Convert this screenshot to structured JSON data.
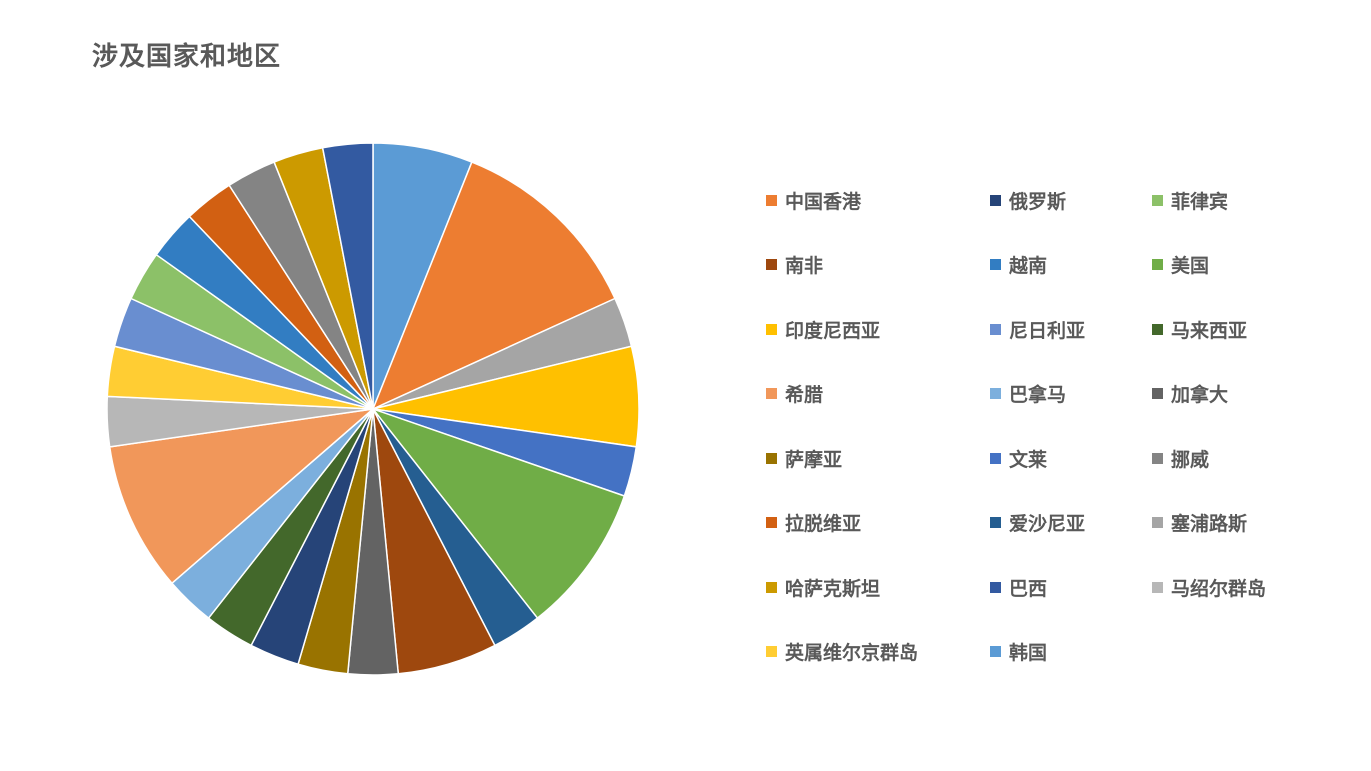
{
  "chart_data": {
    "type": "pie",
    "title": "涉及国家和地区",
    "legend_position": "right",
    "slice_order": "clockwise-from-top",
    "slices": [
      {
        "label": "韩国",
        "value": 2,
        "color": "#5B9BD5"
      },
      {
        "label": "中国香港",
        "value": 4,
        "color": "#ED7D31"
      },
      {
        "label": "塞浦路斯",
        "value": 1,
        "color": "#A5A5A5"
      },
      {
        "label": "印度尼西亚",
        "value": 2,
        "color": "#FFC000"
      },
      {
        "label": "文莱",
        "value": 1,
        "color": "#4472C4"
      },
      {
        "label": "美国",
        "value": 3,
        "color": "#70AD47"
      },
      {
        "label": "爱沙尼亚",
        "value": 1,
        "color": "#255E91"
      },
      {
        "label": "南非",
        "value": 2,
        "color": "#9E480E"
      },
      {
        "label": "加拿大",
        "value": 1,
        "color": "#636363"
      },
      {
        "label": "萨摩亚",
        "value": 1,
        "color": "#997300"
      },
      {
        "label": "俄罗斯",
        "value": 1,
        "color": "#264478"
      },
      {
        "label": "马来西亚",
        "value": 1,
        "color": "#43682B"
      },
      {
        "label": "巴拿马",
        "value": 1,
        "color": "#7CAFDD"
      },
      {
        "label": "希腊",
        "value": 3,
        "color": "#F1975A"
      },
      {
        "label": "马绍尔群岛",
        "value": 1,
        "color": "#B7B7B7"
      },
      {
        "label": "英属维尔京群岛",
        "value": 1,
        "color": "#FFCD33"
      },
      {
        "label": "尼日利亚",
        "value": 1,
        "color": "#698ED0"
      },
      {
        "label": "菲律宾",
        "value": 1,
        "color": "#8CC168"
      },
      {
        "label": "越南",
        "value": 1,
        "color": "#327DC2"
      },
      {
        "label": "拉脱维亚",
        "value": 1,
        "color": "#D26012"
      },
      {
        "label": "挪威",
        "value": 1,
        "color": "#848484"
      },
      {
        "label": "哈萨克斯坦",
        "value": 1,
        "color": "#CC9A00"
      },
      {
        "label": "巴西",
        "value": 1,
        "color": "#335AA1"
      }
    ],
    "legend": [
      [
        "中国香港",
        "俄罗斯",
        "菲律宾"
      ],
      [
        "南非",
        "越南",
        "美国"
      ],
      [
        "印度尼西亚",
        "尼日利亚",
        "马来西亚"
      ],
      [
        "希腊",
        "巴拿马",
        "加拿大"
      ],
      [
        "萨摩亚",
        "文莱",
        "挪威"
      ],
      [
        "拉脱维亚",
        "爱沙尼亚",
        "塞浦路斯"
      ],
      [
        "哈萨克斯坦",
        "巴西",
        "马绍尔群岛"
      ],
      [
        "英属维尔京群岛",
        "韩国"
      ]
    ]
  }
}
